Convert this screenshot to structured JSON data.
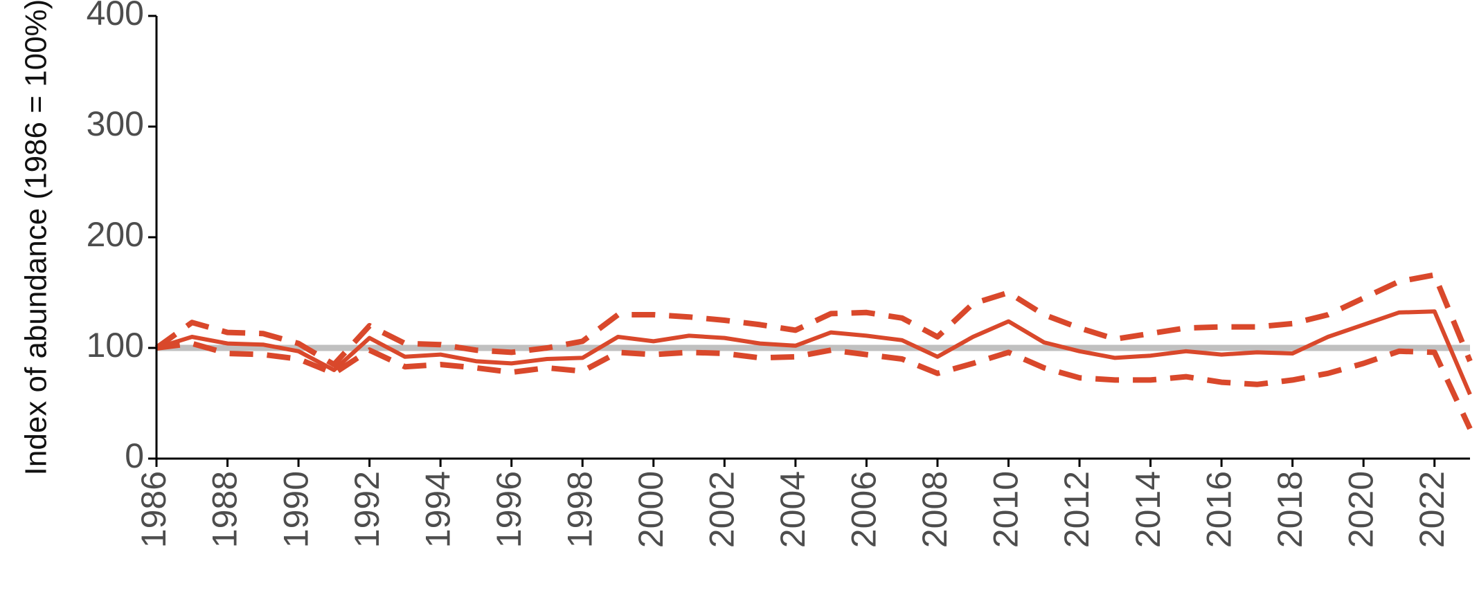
{
  "chart_data": {
    "type": "line",
    "y_label": "Index of abundance (1986 = 100%)",
    "x": [
      1986,
      1987,
      1988,
      1989,
      1990,
      1991,
      1992,
      1993,
      1994,
      1995,
      1996,
      1997,
      1998,
      1999,
      2000,
      2001,
      2002,
      2003,
      2004,
      2005,
      2006,
      2007,
      2008,
      2009,
      2010,
      2011,
      2012,
      2013,
      2014,
      2015,
      2016,
      2017,
      2018,
      2019,
      2020,
      2021,
      2022,
      2023
    ],
    "series": [
      {
        "color": "#d9482b",
        "dashed": true,
        "values": [
          100,
          123,
          114,
          113,
          104,
          85,
          120,
          104,
          103,
          98,
          96,
          100,
          106,
          130,
          130,
          128,
          125,
          121,
          116,
          131,
          132,
          127,
          110,
          140,
          150,
          130,
          118,
          108,
          113,
          118,
          119,
          119,
          122,
          130,
          145,
          160,
          166,
          88
        ]
      },
      {
        "color": "#d9482b",
        "dashed": true,
        "values": [
          100,
          104,
          95,
          94,
          90,
          77,
          98,
          83,
          85,
          82,
          78,
          82,
          79,
          96,
          94,
          96,
          95,
          91,
          92,
          98,
          94,
          90,
          77,
          86,
          96,
          82,
          73,
          71,
          71,
          74,
          69,
          67,
          71,
          77,
          86,
          97,
          96,
          27
        ]
      },
      {
        "color": "#d9482b",
        "dashed": false,
        "values": [
          100,
          110,
          104,
          103,
          97,
          80,
          109,
          92,
          94,
          88,
          86,
          90,
          91,
          110,
          106,
          111,
          109,
          104,
          102,
          114,
          111,
          107,
          92,
          110,
          124,
          105,
          97,
          91,
          93,
          97,
          94,
          96,
          95,
          110,
          121,
          132,
          133,
          58
        ]
      }
    ],
    "reference_line": {
      "value": 100,
      "color": "#c0c0c0"
    },
    "xlim": [
      1986,
      2023
    ],
    "xticks": [
      1986,
      1988,
      1990,
      1992,
      1994,
      1996,
      1998,
      2000,
      2002,
      2004,
      2006,
      2008,
      2010,
      2012,
      2014,
      2016,
      2018,
      2020,
      2022
    ],
    "ylim": [
      0,
      400
    ],
    "yticks": [
      0,
      100,
      200,
      300,
      400
    ]
  }
}
